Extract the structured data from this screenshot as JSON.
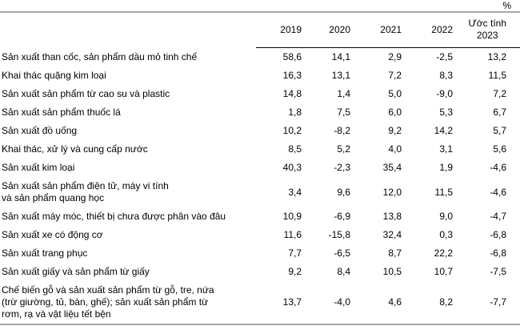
{
  "unit_label": "%",
  "table": {
    "columns": [
      "2019",
      "2020",
      "2021",
      "2022"
    ],
    "last_column_lines": [
      "Ước tính",
      "2023"
    ],
    "rows": [
      {
        "lines": [
          "Sản xuất than cốc, sản phẩm dầu mỏ tinh chế"
        ],
        "values": [
          "58,6",
          "14,1",
          "2,9",
          "-2,5",
          "13,2"
        ]
      },
      {
        "lines": [
          "Khai thác quặng kim loại"
        ],
        "values": [
          "16,3",
          "13,1",
          "7,2",
          "8,3",
          "11,5"
        ]
      },
      {
        "lines": [
          "Sản xuất sản phẩm từ cao su và plastic"
        ],
        "values": [
          "14,8",
          "1,4",
          "5,0",
          "-9,0",
          "7,2"
        ]
      },
      {
        "lines": [
          "Sản xuất sản phẩm thuốc lá"
        ],
        "values": [
          "1,8",
          "7,5",
          "6,0",
          "5,3",
          "6,7"
        ]
      },
      {
        "lines": [
          "Sản xuất đồ uống"
        ],
        "values": [
          "10,2",
          "-8,2",
          "9,2",
          "14,2",
          "5,7"
        ]
      },
      {
        "lines": [
          "Khai thác, xử lý và cung cấp nước"
        ],
        "values": [
          "8,5",
          "5,2",
          "4,0",
          "3,1",
          "5,6"
        ]
      },
      {
        "lines": [
          "Sản xuất kim loại"
        ],
        "values": [
          "40,3",
          "-2,3",
          "35,4",
          "1,9",
          "-4,6"
        ]
      },
      {
        "lines": [
          "Sản xuất sản phẩm điện tử, máy vi tính",
          "và sản phẩm quang học"
        ],
        "values": [
          "3,4",
          "9,6",
          "12,0",
          "11,5",
          "-4,6"
        ]
      },
      {
        "lines": [
          "Sản xuất máy móc, thiết bị chưa được phân vào đâu"
        ],
        "values": [
          "10,9",
          "-6,9",
          "13,8",
          "9,0",
          "-4,7"
        ]
      },
      {
        "lines": [
          "Sản xuất xe có động cơ"
        ],
        "values": [
          "11,6",
          "-15,8",
          "32,4",
          "0,3",
          "-6,8"
        ]
      },
      {
        "lines": [
          "Sản xuất trang phục"
        ],
        "values": [
          "7,7",
          "-6,5",
          "8,7",
          "22,2",
          "-6,8"
        ]
      },
      {
        "lines": [
          "Sản xuất giấy và sản phẩm từ giấy"
        ],
        "values": [
          "9,2",
          "8,4",
          "10,5",
          "10,7",
          "-7,5"
        ]
      },
      {
        "lines": [
          "Chế biến gỗ và sản xuất sản phẩm từ gỗ, tre, nứa",
          "(trừ giường, tủ, bàn, ghế); sản xuất sản phẩm từ",
          "rơm, rạ và vật liệu tết bện"
        ],
        "values": [
          "13,7",
          "-4,0",
          "4,6",
          "8,2",
          "-7,7"
        ]
      }
    ]
  },
  "chart_data": {
    "type": "table",
    "unit": "%",
    "categories": [
      "2019",
      "2020",
      "2021",
      "2022",
      "Ước tính 2023"
    ],
    "series": [
      {
        "name": "Sản xuất than cốc, sản phẩm dầu mỏ tinh chế",
        "values": [
          58.6,
          14.1,
          2.9,
          -2.5,
          13.2
        ]
      },
      {
        "name": "Khai thác quặng kim loại",
        "values": [
          16.3,
          13.1,
          7.2,
          8.3,
          11.5
        ]
      },
      {
        "name": "Sản xuất sản phẩm từ cao su và plastic",
        "values": [
          14.8,
          1.4,
          5.0,
          -9.0,
          7.2
        ]
      },
      {
        "name": "Sản xuất sản phẩm thuốc lá",
        "values": [
          1.8,
          7.5,
          6.0,
          5.3,
          6.7
        ]
      },
      {
        "name": "Sản xuất đồ uống",
        "values": [
          10.2,
          -8.2,
          9.2,
          14.2,
          5.7
        ]
      },
      {
        "name": "Khai thác, xử lý và cung cấp nước",
        "values": [
          8.5,
          5.2,
          4.0,
          3.1,
          5.6
        ]
      },
      {
        "name": "Sản xuất kim loại",
        "values": [
          40.3,
          -2.3,
          35.4,
          1.9,
          -4.6
        ]
      },
      {
        "name": "Sản xuất sản phẩm điện tử, máy vi tính và sản phẩm quang học",
        "values": [
          3.4,
          9.6,
          12.0,
          11.5,
          -4.6
        ]
      },
      {
        "name": "Sản xuất máy móc, thiết bị chưa được phân vào đâu",
        "values": [
          10.9,
          -6.9,
          13.8,
          9.0,
          -4.7
        ]
      },
      {
        "name": "Sản xuất xe có động cơ",
        "values": [
          11.6,
          -15.8,
          32.4,
          0.3,
          -6.8
        ]
      },
      {
        "name": "Sản xuất trang phục",
        "values": [
          7.7,
          -6.5,
          8.7,
          22.2,
          -6.8
        ]
      },
      {
        "name": "Sản xuất giấy và sản phẩm từ giấy",
        "values": [
          9.2,
          8.4,
          10.5,
          10.7,
          -7.5
        ]
      },
      {
        "name": "Chế biến gỗ và sản xuất sản phẩm từ gỗ, tre, nứa (trừ giường, tủ, bàn, ghế); sản xuất sản phẩm từ rơm, rạ và vật liệu tết bện",
        "values": [
          13.7,
          -4.0,
          4.6,
          8.2,
          -7.7
        ]
      }
    ]
  },
  "colors": {
    "background": "#ffffff",
    "text": "#000000",
    "divider_gray": "#a6a6a6",
    "header_rule": "#000000"
  }
}
